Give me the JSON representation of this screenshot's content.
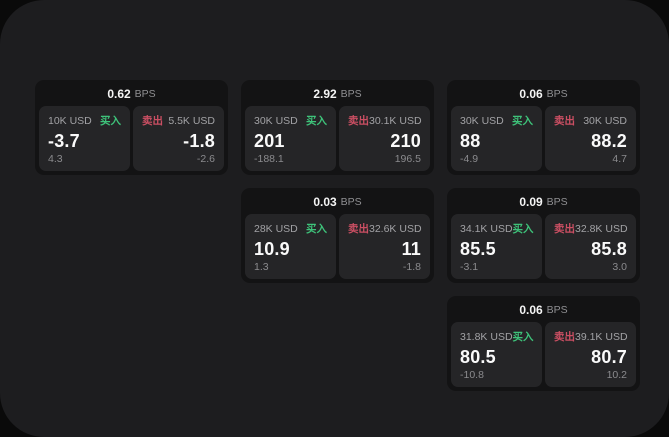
{
  "labels": {
    "buy": "买入",
    "sell": "卖出",
    "bps_unit": "BPS"
  },
  "colors": {
    "buy_accent": "#3ec37a",
    "sell_accent": "#cb4f63",
    "panel_bg": "#1d1d1f",
    "card_bg": "#131314",
    "tile_bg": "#252527"
  },
  "cards": [
    {
      "grid": {
        "row": 1,
        "col": 1
      },
      "bps": "0.62",
      "buy": {
        "amount": "10K USD",
        "value": "-3.7",
        "change": "4.3"
      },
      "sell": {
        "amount": "5.5K USD",
        "value": "-1.8",
        "change": "-2.6"
      }
    },
    {
      "grid": {
        "row": 1,
        "col": 2
      },
      "bps": "2.92",
      "buy": {
        "amount": "30K USD",
        "value": "201",
        "change": "-188.1"
      },
      "sell": {
        "amount": "30.1K USD",
        "value": "210",
        "change": "196.5"
      }
    },
    {
      "grid": {
        "row": 1,
        "col": 3
      },
      "bps": "0.06",
      "buy": {
        "amount": "30K USD",
        "value": "88",
        "change": "-4.9"
      },
      "sell": {
        "amount": "30K USD",
        "value": "88.2",
        "change": "4.7"
      }
    },
    {
      "grid": {
        "row": 2,
        "col": 2
      },
      "bps": "0.03",
      "buy": {
        "amount": "28K USD",
        "value": "10.9",
        "change": "1.3"
      },
      "sell": {
        "amount": "32.6K USD",
        "value": "11",
        "change": "-1.8"
      }
    },
    {
      "grid": {
        "row": 2,
        "col": 3
      },
      "bps": "0.09",
      "buy": {
        "amount": "34.1K USD",
        "value": "85.5",
        "change": "-3.1"
      },
      "sell": {
        "amount": "32.8K USD",
        "value": "85.8",
        "change": "3.0"
      }
    },
    {
      "grid": {
        "row": 3,
        "col": 3
      },
      "bps": "0.06",
      "buy": {
        "amount": "31.8K USD",
        "value": "80.5",
        "change": "-10.8"
      },
      "sell": {
        "amount": "39.1K USD",
        "value": "80.7",
        "change": "10.2"
      }
    }
  ]
}
